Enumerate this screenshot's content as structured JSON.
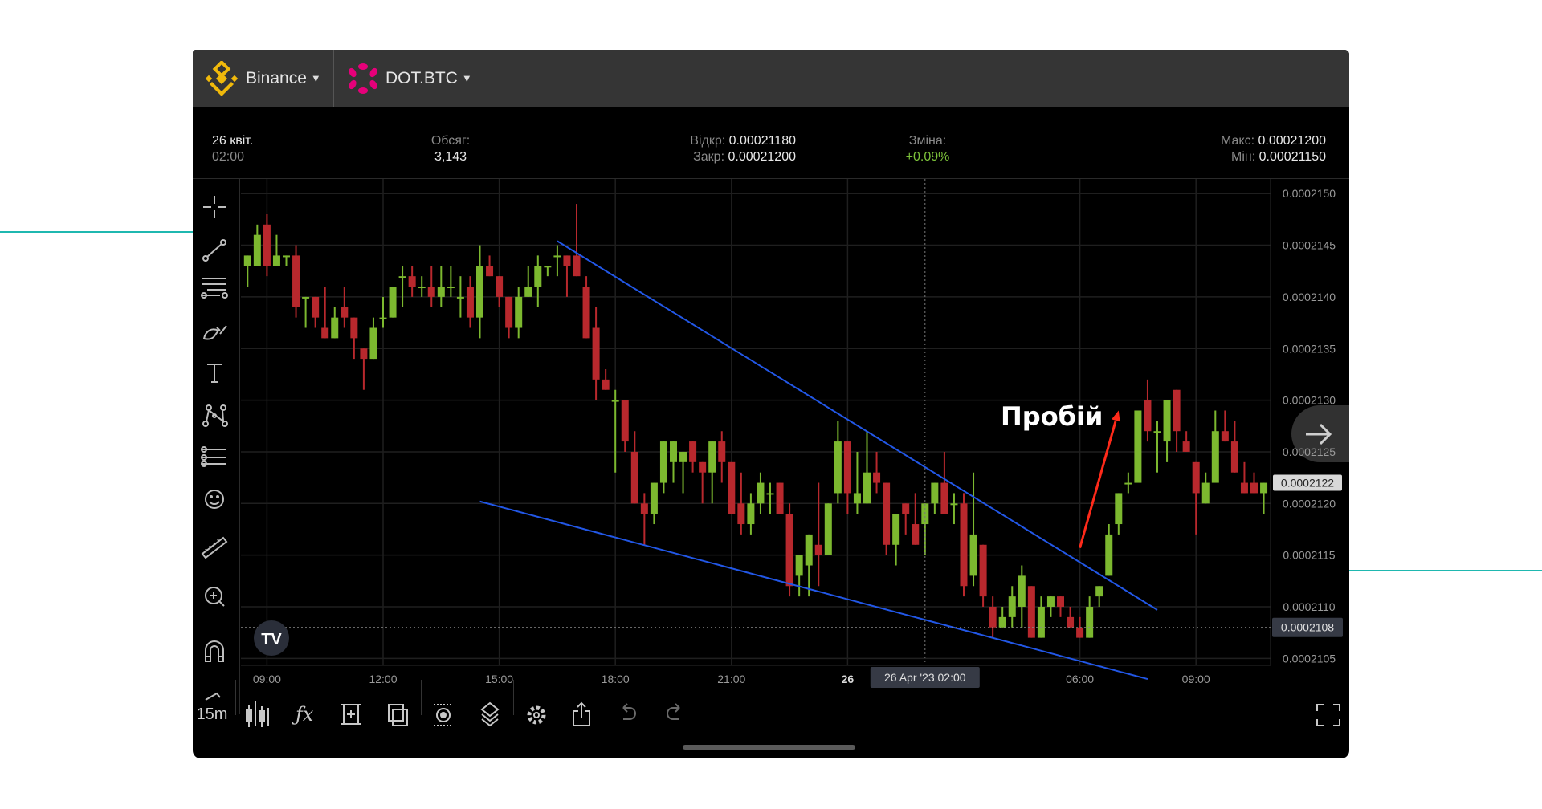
{
  "header": {
    "exchange": {
      "label": "Binance",
      "icon": "binance-logo",
      "color": "#f0b90b"
    },
    "symbol": {
      "label": "DOT.BTC",
      "icon": "polkadot-logo",
      "color": "#e6007a"
    }
  },
  "info": {
    "date": "26 квіт.",
    "time": "02:00",
    "volume_label": "Обсяг:",
    "volume": "3,143",
    "open_label": "Відкр:",
    "open": "0.00021180",
    "close_label": "Закр:",
    "close": "0.00021200",
    "change_label": "Зміна:",
    "change": "+0.09%",
    "high_label": "Макс:",
    "high": "0.00021200",
    "low_label": "Мін:",
    "low": "0.00021150"
  },
  "left_toolbar": [
    "crosshair-icon",
    "trend-line-icon",
    "fib-lines-icon",
    "brush-icon",
    "text-icon",
    "pattern-icon",
    "prediction-icon",
    "emoji-icon",
    "ruler-icon",
    "zoom-in-icon",
    "magnet-icon",
    "pencil-icon"
  ],
  "bottom_toolbar": {
    "interval": "15m",
    "icons": [
      "candles-icon",
      "indicators-fx-icon",
      "add-chart-icon",
      "compare-icon",
      "hide-icon",
      "layers-icon",
      "settings-icon",
      "share-icon",
      "undo-icon",
      "redo-icon"
    ],
    "fullscreen": "fullscreen-icon"
  },
  "annotation": {
    "text": "Пробій",
    "color": "#ffffff",
    "arrow_color": "#ff2a1a"
  },
  "colors": {
    "up": "#7cb82f",
    "down": "#b8282d",
    "trendline": "#2257e6",
    "grid": "#1f1f1f",
    "teal_accent": "#1fb8b0"
  },
  "chart_data": {
    "type": "candlestick",
    "interval": "15m",
    "ylim": [
      0.0002103,
      0.0002152
    ],
    "y_ticks": [
      "0.0002150",
      "0.0002145",
      "0.0002140",
      "0.0002135",
      "0.0002130",
      "0.0002125",
      "0.0002120",
      "0.0002115",
      "0.0002110",
      "0.0002105"
    ],
    "x_ticks": [
      {
        "label": "09:00",
        "time": "09:00"
      },
      {
        "label": "12:00",
        "time": "12:00"
      },
      {
        "label": "15:00",
        "time": "15:00"
      },
      {
        "label": "18:00",
        "time": "18:00"
      },
      {
        "label": "21:00",
        "time": "21:00"
      },
      {
        "label": "26",
        "time": "00:00"
      },
      {
        "label": "06:00",
        "time": "06:00"
      },
      {
        "label": "09:00",
        "time": "09:00b"
      }
    ],
    "grid": true,
    "last_price": "0.0002122",
    "crosshair": {
      "time_label": "26 Apr '23   02:00",
      "time": "02:00",
      "price_label": "0.0002108",
      "price": 0.0002108
    },
    "trendlines": [
      {
        "from": {
          "time": "16:30",
          "price": 0.00021454
        },
        "to": {
          "time": "08:00",
          "price": 0.00021097
        }
      },
      {
        "from": {
          "time": "14:30",
          "price": 0.00021202
        },
        "to": {
          "time": "07:45",
          "price": 0.0002103
        }
      }
    ],
    "arrow": {
      "from": {
        "time": "06:00",
        "price": 0.00021157
      },
      "to": {
        "time": "07:00",
        "price": 0.0002129
      }
    },
    "candles_columns": [
      "time",
      "open",
      "high",
      "low",
      "close"
    ],
    "candles": [
      [
        "08:30",
        0.0002143,
        0.0002144,
        0.0002141,
        0.0002144
      ],
      [
        "08:45",
        0.0002143,
        0.0002147,
        0.0002143,
        0.0002146
      ],
      [
        "09:00",
        0.0002147,
        0.0002148,
        0.0002142,
        0.0002143
      ],
      [
        "09:15",
        0.0002143,
        0.0002146,
        0.0002143,
        0.0002144
      ],
      [
        "09:30",
        0.0002144,
        0.0002144,
        0.0002143,
        0.0002144
      ],
      [
        "09:45",
        0.0002144,
        0.0002145,
        0.0002138,
        0.0002139
      ],
      [
        "10:00",
        0.000214,
        0.000214,
        0.0002137,
        0.000214
      ],
      [
        "10:15",
        0.000214,
        0.000214,
        0.0002137,
        0.0002138
      ],
      [
        "10:30",
        0.0002137,
        0.0002141,
        0.0002136,
        0.0002136
      ],
      [
        "10:45",
        0.0002136,
        0.0002139,
        0.0002136,
        0.0002138
      ],
      [
        "11:00",
        0.0002139,
        0.0002141,
        0.0002137,
        0.0002138
      ],
      [
        "11:15",
        0.0002138,
        0.0002138,
        0.0002134,
        0.0002136
      ],
      [
        "11:30",
        0.0002135,
        0.0002135,
        0.0002131,
        0.0002134
      ],
      [
        "11:45",
        0.0002134,
        0.0002138,
        0.0002134,
        0.0002137
      ],
      [
        "12:00",
        0.0002138,
        0.000214,
        0.0002137,
        0.0002138
      ],
      [
        "12:15",
        0.0002138,
        0.0002141,
        0.0002138,
        0.0002141
      ],
      [
        "12:30",
        0.0002142,
        0.0002143,
        0.0002139,
        0.0002142
      ],
      [
        "12:45",
        0.0002142,
        0.0002143,
        0.000214,
        0.0002141
      ],
      [
        "13:00",
        0.0002141,
        0.0002142,
        0.000214,
        0.0002141
      ],
      [
        "13:15",
        0.0002141,
        0.0002143,
        0.0002139,
        0.000214
      ],
      [
        "13:30",
        0.000214,
        0.0002143,
        0.0002139,
        0.0002141
      ],
      [
        "13:45",
        0.0002141,
        0.0002143,
        0.000214,
        0.0002141
      ],
      [
        "14:00",
        0.000214,
        0.0002142,
        0.0002138,
        0.000214
      ],
      [
        "14:15",
        0.0002141,
        0.0002142,
        0.0002137,
        0.0002138
      ],
      [
        "14:30",
        0.0002138,
        0.0002145,
        0.0002136,
        0.0002143
      ],
      [
        "14:45",
        0.0002143,
        0.0002144,
        0.0002142,
        0.0002142
      ],
      [
        "15:00",
        0.0002142,
        0.0002142,
        0.0002139,
        0.000214
      ],
      [
        "15:15",
        0.000214,
        0.000214,
        0.0002136,
        0.0002137
      ],
      [
        "15:30",
        0.0002137,
        0.0002141,
        0.0002136,
        0.000214
      ],
      [
        "15:45",
        0.000214,
        0.0002143,
        0.000214,
        0.0002141
      ],
      [
        "16:00",
        0.0002141,
        0.0002144,
        0.0002139,
        0.0002143
      ],
      [
        "16:15",
        0.0002143,
        0.0002143,
        0.0002142,
        0.0002143
      ],
      [
        "16:30",
        0.0002144,
        0.0002145,
        0.0002142,
        0.0002144
      ],
      [
        "16:45",
        0.0002144,
        0.0002144,
        0.000214,
        0.0002143
      ],
      [
        "17:00",
        0.0002144,
        0.0002149,
        0.0002142,
        0.0002142
      ],
      [
        "17:15",
        0.0002141,
        0.0002142,
        0.0002136,
        0.0002136
      ],
      [
        "17:30",
        0.0002137,
        0.0002139,
        0.000213,
        0.0002132
      ],
      [
        "17:45",
        0.0002132,
        0.0002133,
        0.0002131,
        0.0002131
      ],
      [
        "18:00",
        0.000213,
        0.0002131,
        0.0002123,
        0.000213
      ],
      [
        "18:15",
        0.000213,
        0.000213,
        0.0002125,
        0.0002126
      ],
      [
        "18:30",
        0.0002125,
        0.0002127,
        0.000212,
        0.000212
      ],
      [
        "18:45",
        0.000212,
        0.0002121,
        0.0002116,
        0.0002119
      ],
      [
        "19:00",
        0.0002119,
        0.0002122,
        0.0002118,
        0.0002122
      ],
      [
        "19:15",
        0.0002122,
        0.0002126,
        0.0002121,
        0.0002126
      ],
      [
        "19:30",
        0.0002124,
        0.0002126,
        0.0002122,
        0.0002126
      ],
      [
        "19:45",
        0.0002124,
        0.0002125,
        0.0002121,
        0.0002125
      ],
      [
        "20:00",
        0.0002126,
        0.0002126,
        0.0002123,
        0.0002124
      ],
      [
        "20:15",
        0.0002124,
        0.0002124,
        0.000212,
        0.0002123
      ],
      [
        "20:30",
        0.0002123,
        0.0002126,
        0.000212,
        0.0002126
      ],
      [
        "20:45",
        0.0002126,
        0.0002127,
        0.0002122,
        0.0002124
      ],
      [
        "21:00",
        0.0002124,
        0.0002124,
        0.0002119,
        0.0002119
      ],
      [
        "21:15",
        0.000212,
        0.0002123,
        0.0002117,
        0.0002118
      ],
      [
        "21:30",
        0.0002118,
        0.0002121,
        0.0002117,
        0.000212
      ],
      [
        "21:45",
        0.000212,
        0.0002123,
        0.0002119,
        0.0002122
      ],
      [
        "22:00",
        0.0002121,
        0.0002122,
        0.0002119,
        0.0002121
      ],
      [
        "22:15",
        0.0002122,
        0.0002122,
        0.0002119,
        0.0002119
      ],
      [
        "22:30",
        0.0002119,
        0.000212,
        0.0002111,
        0.0002112
      ],
      [
        "22:45",
        0.0002113,
        0.0002115,
        0.0002111,
        0.0002115
      ],
      [
        "23:00",
        0.0002114,
        0.0002117,
        0.0002111,
        0.0002117
      ],
      [
        "23:15",
        0.0002116,
        0.0002122,
        0.0002112,
        0.0002115
      ],
      [
        "23:30",
        0.0002115,
        0.000212,
        0.0002115,
        0.000212
      ],
      [
        "23:45",
        0.0002121,
        0.0002128,
        0.000212,
        0.0002126
      ],
      [
        "00:00",
        0.0002126,
        0.0002126,
        0.0002119,
        0.0002121
      ],
      [
        "00:15",
        0.000212,
        0.0002125,
        0.0002119,
        0.0002121
      ],
      [
        "00:30",
        0.000212,
        0.0002127,
        0.000212,
        0.0002123
      ],
      [
        "00:45",
        0.0002123,
        0.0002125,
        0.0002121,
        0.0002122
      ],
      [
        "01:00",
        0.0002122,
        0.0002122,
        0.0002115,
        0.0002116
      ],
      [
        "01:15",
        0.0002116,
        0.0002119,
        0.0002114,
        0.0002119
      ],
      [
        "01:30",
        0.000212,
        0.000212,
        0.0002117,
        0.0002119
      ],
      [
        "01:45",
        0.0002118,
        0.0002121,
        0.0002116,
        0.0002116
      ],
      [
        "02:00",
        0.0002118,
        0.000212,
        0.0002115,
        0.000212
      ],
      [
        "02:15",
        0.000212,
        0.0002122,
        0.0002119,
        0.0002122
      ],
      [
        "02:30",
        0.0002122,
        0.0002125,
        0.0002119,
        0.0002119
      ],
      [
        "02:45",
        0.000212,
        0.0002121,
        0.0002118,
        0.000212
      ],
      [
        "03:00",
        0.000212,
        0.0002121,
        0.0002111,
        0.0002112
      ],
      [
        "03:15",
        0.0002113,
        0.0002123,
        0.0002112,
        0.0002117
      ],
      [
        "03:30",
        0.0002116,
        0.0002116,
        0.000211,
        0.0002111
      ],
      [
        "03:45",
        0.000211,
        0.0002111,
        0.0002107,
        0.0002108
      ],
      [
        "04:00",
        0.0002108,
        0.000211,
        0.0002108,
        0.0002109
      ],
      [
        "04:15",
        0.0002109,
        0.0002112,
        0.0002108,
        0.0002111
      ],
      [
        "04:30",
        0.000211,
        0.0002114,
        0.0002108,
        0.0002113
      ],
      [
        "04:45",
        0.0002112,
        0.0002112,
        0.0002107,
        0.0002107
      ],
      [
        "05:00",
        0.0002107,
        0.0002111,
        0.0002107,
        0.000211
      ],
      [
        "05:15",
        0.000211,
        0.0002111,
        0.0002109,
        0.0002111
      ],
      [
        "05:30",
        0.0002111,
        0.0002111,
        0.0002109,
        0.000211
      ],
      [
        "05:45",
        0.0002109,
        0.000211,
        0.0002108,
        0.0002108
      ],
      [
        "06:00",
        0.0002108,
        0.0002109,
        0.0002107,
        0.0002107
      ],
      [
        "06:15",
        0.0002107,
        0.0002111,
        0.0002107,
        0.000211
      ],
      [
        "06:30",
        0.0002111,
        0.0002112,
        0.000211,
        0.0002112
      ],
      [
        "06:45",
        0.0002113,
        0.0002118,
        0.0002113,
        0.0002117
      ],
      [
        "07:00",
        0.0002118,
        0.0002121,
        0.0002117,
        0.0002121
      ],
      [
        "07:15",
        0.0002122,
        0.0002123,
        0.0002121,
        0.0002122
      ],
      [
        "07:30",
        0.0002122,
        0.0002129,
        0.0002122,
        0.0002129
      ],
      [
        "07:45",
        0.000213,
        0.0002132,
        0.0002126,
        0.0002127
      ],
      [
        "08:00",
        0.0002127,
        0.0002128,
        0.0002123,
        0.0002127
      ],
      [
        "08:15",
        0.0002126,
        0.000213,
        0.0002124,
        0.000213
      ],
      [
        "08:30",
        0.0002131,
        0.0002131,
        0.0002125,
        0.0002127
      ],
      [
        "08:45",
        0.0002126,
        0.0002127,
        0.0002125,
        0.0002125
      ],
      [
        "09:00",
        0.0002124,
        0.0002124,
        0.0002117,
        0.0002121
      ],
      [
        "09:15",
        0.000212,
        0.0002123,
        0.000212,
        0.0002122
      ],
      [
        "09:30",
        0.0002122,
        0.0002129,
        0.0002122,
        0.0002127
      ],
      [
        "09:45",
        0.0002127,
        0.0002129,
        0.0002126,
        0.0002126
      ],
      [
        "10:00",
        0.0002126,
        0.0002128,
        0.0002123,
        0.0002123
      ],
      [
        "10:15",
        0.0002122,
        0.0002124,
        0.0002121,
        0.0002121
      ],
      [
        "10:30",
        0.0002122,
        0.0002123,
        0.0002121,
        0.0002121
      ],
      [
        "10:45",
        0.0002121,
        0.0002122,
        0.0002119,
        0.0002122
      ]
    ]
  }
}
